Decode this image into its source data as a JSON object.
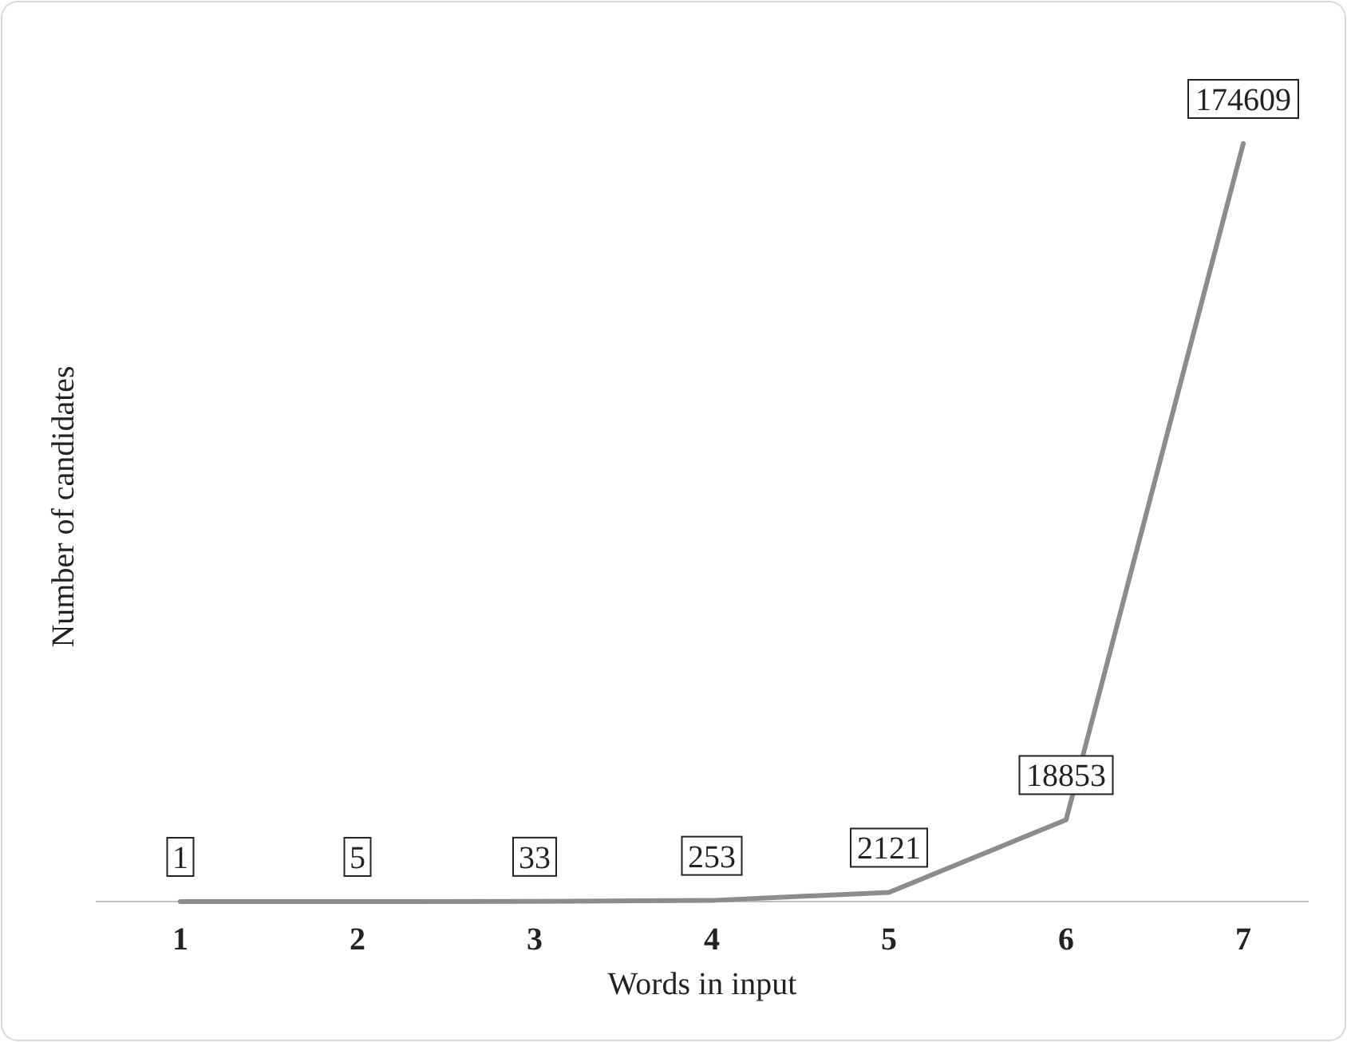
{
  "chart_data": {
    "type": "line",
    "xlabel": "Words in input",
    "ylabel": "Number of candidates",
    "categories": [
      "1",
      "2",
      "3",
      "4",
      "5",
      "6",
      "7"
    ],
    "series": [
      {
        "color": "#8c8c8c",
        "values": [
          1,
          5,
          33,
          253,
          2121,
          18853,
          174609
        ]
      }
    ],
    "data_labels": true,
    "marker": "none",
    "line_style": "solid"
  }
}
